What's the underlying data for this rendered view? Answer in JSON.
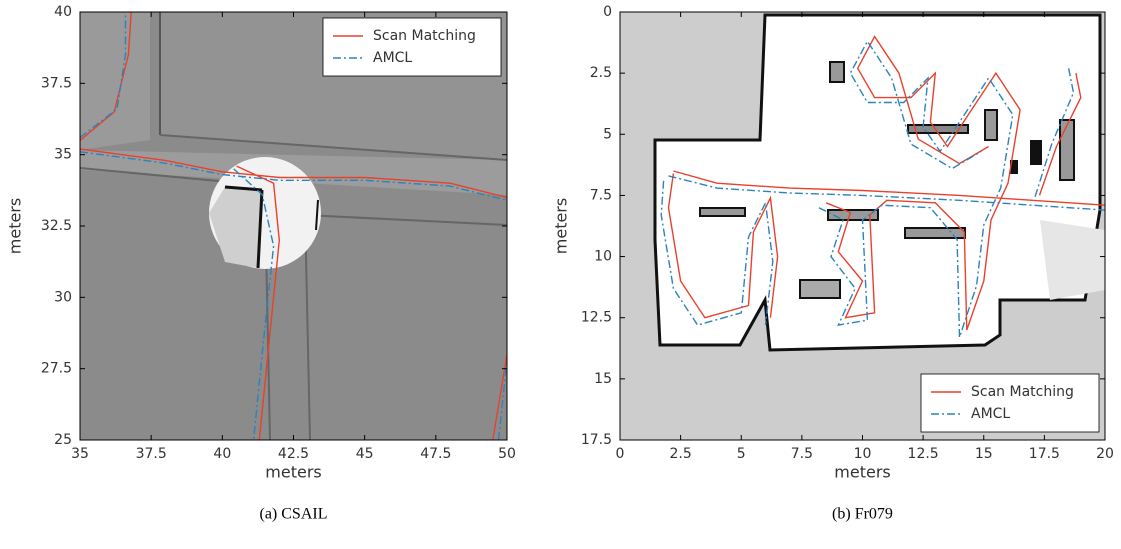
{
  "chart_data": [
    {
      "type": "line",
      "caption": "(a) CSAIL",
      "xlabel": "meters",
      "ylabel": "meters",
      "xlim": [
        35,
        50
      ],
      "ylim": [
        25,
        40
      ],
      "xticks": [
        35,
        37.5,
        40,
        42.5,
        45,
        47.5,
        50
      ],
      "yticks": [
        25,
        27.5,
        30,
        32.5,
        35,
        37.5,
        40
      ],
      "legend": "upper right",
      "series": [
        {
          "name": "Scan Matching",
          "color": "#e8412c",
          "linestyle": "-",
          "x": [
            35,
            36.2,
            36.7,
            36.8,
            null,
            35,
            38,
            40,
            42,
            45,
            48,
            50,
            null,
            40.5,
            41.8,
            42,
            41.7,
            41.3,
            null,
            49.5,
            50
          ],
          "values": [
            35.5,
            36.5,
            38.5,
            40,
            null,
            35.2,
            34.8,
            34.4,
            34.2,
            34.2,
            34,
            33.5,
            null,
            34.6,
            34,
            32,
            29,
            25,
            null,
            25,
            28
          ]
        },
        {
          "name": "AMCL",
          "color": "#2b83ba",
          "linestyle": "-.",
          "x": [
            35,
            36.3,
            36.6,
            36.6,
            null,
            35,
            38,
            40,
            42,
            45,
            48,
            50,
            null,
            40.4,
            41.4,
            41.8,
            41.5,
            41.1,
            null,
            49.7,
            50
          ],
          "values": [
            35.6,
            36.6,
            38.5,
            40,
            null,
            35.1,
            34.7,
            34.3,
            34.1,
            34.1,
            33.9,
            33.4,
            null,
            34.5,
            33.6,
            31.8,
            29,
            25,
            null,
            25,
            27.8
          ]
        }
      ]
    },
    {
      "type": "line",
      "caption": "(b) Fr079",
      "xlabel": "meters",
      "ylabel": "meters",
      "xlim": [
        0,
        20
      ],
      "ylim": [
        17.5,
        0
      ],
      "xticks": [
        0,
        2.5,
        5,
        7.5,
        10,
        12.5,
        15,
        17.5,
        20
      ],
      "yticks": [
        0,
        2.5,
        5,
        7.5,
        10,
        12.5,
        15,
        17.5
      ],
      "legend": "lower right",
      "series": [
        {
          "name": "Scan Matching",
          "color": "#e8412c",
          "linestyle": "-",
          "x": [
            2.2,
            4,
            7,
            10,
            14,
            17,
            20,
            null,
            18.8,
            19,
            18,
            17.3,
            null,
            2.2,
            2,
            2.5,
            3.5,
            5.3,
            5.5,
            6.2,
            6.5,
            6.2,
            null,
            8.5,
            9.5,
            9,
            10,
            9.3,
            10.5,
            10.3,
            11,
            13,
            14.2,
            14.3,
            15,
            15.3,
            16,
            16.5,
            15.5,
            14.5,
            13.5,
            12.8,
            13,
            12,
            10.5,
            9.8,
            10.5,
            11.5,
            12.3,
            14,
            15.2
          ],
          "values": [
            6.5,
            7,
            7.2,
            7.3,
            7.5,
            7.7,
            7.9,
            null,
            2.5,
            3.5,
            5.5,
            7.5,
            null,
            6.6,
            8,
            11,
            12.5,
            12,
            9,
            7.6,
            10,
            12.5,
            null,
            7.8,
            8.2,
            9.8,
            11,
            12.5,
            12.3,
            8.3,
            7.7,
            7.8,
            9,
            13,
            11,
            8.5,
            7,
            4,
            2.5,
            4,
            5.5,
            4.5,
            2.5,
            3.5,
            3.5,
            2.3,
            1,
            2.5,
            5.2,
            6.2,
            5.5
          ]
        },
        {
          "name": "AMCL",
          "color": "#2b83ba",
          "linestyle": "-.",
          "x": [
            2,
            4,
            7,
            10,
            14,
            17,
            20,
            null,
            18.5,
            18.7,
            17.8,
            17.1,
            null,
            1.8,
            1.7,
            2.2,
            3.2,
            5,
            5.3,
            6,
            6.3,
            6,
            null,
            8.2,
            9.2,
            8.7,
            9.7,
            9,
            10.2,
            10,
            10.8,
            12.8,
            13.9,
            14,
            14.7,
            15,
            15.7,
            16.2,
            15.2,
            14.2,
            13.2,
            12.5,
            12.7,
            11.7,
            10.2,
            9.5,
            10.2,
            11.2,
            12,
            13.7,
            14.9
          ],
          "values": [
            6.7,
            7.2,
            7.4,
            7.5,
            7.7,
            7.9,
            8.1,
            null,
            2.3,
            3.3,
            5.4,
            7.6,
            null,
            6.9,
            8.3,
            11.3,
            12.8,
            12.3,
            9.2,
            7.8,
            10.2,
            12.8,
            null,
            8,
            8.5,
            10,
            11.3,
            12.8,
            12.6,
            8.5,
            7.9,
            8,
            9.3,
            13.3,
            11.2,
            8.7,
            7.2,
            4.2,
            2.7,
            4.2,
            5.7,
            4.7,
            2.7,
            3.7,
            3.7,
            2.5,
            1.2,
            2.7,
            5.4,
            6.4,
            5.7
          ]
        }
      ]
    }
  ]
}
